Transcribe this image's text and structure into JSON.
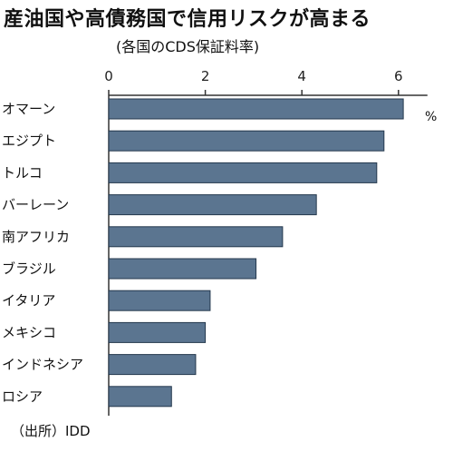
{
  "title": "産油国や高債務国で信用リスクが高まる",
  "subtitle": "(各国のCDS保証料率)",
  "source": "（出所）IDD",
  "colors": {
    "bar": "#5b7590",
    "bar_stroke": "#24384d",
    "axis": "#333333"
  },
  "chart_data": {
    "type": "bar",
    "orientation": "horizontal",
    "title": "産油国や高債務国で信用リスクが高まる",
    "subtitle": "(各国のCDS保証料率)",
    "unit_label": "%",
    "categories": [
      "オマーン",
      "エジプト",
      "トルコ",
      "バーレーン",
      "南アフリカ",
      "ブラジル",
      "イタリア",
      "メキシコ",
      "インドネシア",
      "ロシア"
    ],
    "values": [
      6.1,
      5.7,
      5.55,
      4.3,
      3.6,
      3.05,
      2.1,
      2.0,
      1.8,
      1.3
    ],
    "xlim": [
      0,
      6.6
    ],
    "xticks": [
      0,
      2,
      4,
      6
    ],
    "grid": false,
    "axis_position": "top"
  }
}
